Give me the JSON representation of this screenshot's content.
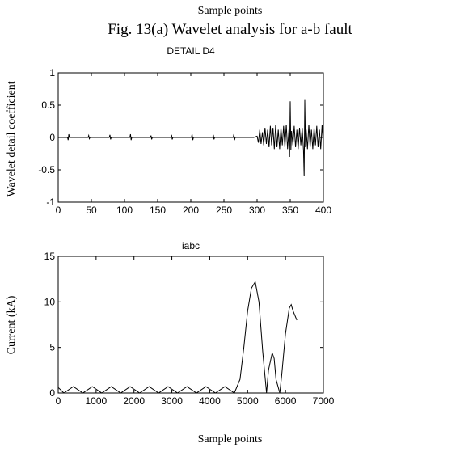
{
  "header": {
    "top_caption": "Sample points",
    "figure_title": "Fig. 13(a) Wavelet analysis for a-b fault"
  },
  "footer": {
    "bottom_caption": "Sample points"
  },
  "chart_data": [
    {
      "type": "line",
      "title": "DETAIL  D4",
      "xlabel": "",
      "ylabel": "Wavelet detail coefficient",
      "xlim": [
        0,
        400
      ],
      "ylim": [
        -1,
        1
      ],
      "xticks": [
        0,
        50,
        100,
        150,
        200,
        250,
        300,
        350,
        400
      ],
      "yticks": [
        -1,
        -0.5,
        0,
        0.5,
        1
      ],
      "xtick_labels": [
        "0",
        "50",
        "100",
        "150",
        "200",
        "250",
        "300",
        "350",
        "400"
      ],
      "ytick_labels": [
        "-1",
        "-0.5",
        "0",
        "0.5",
        "1"
      ],
      "grid": false,
      "series": [
        {
          "x": [
            0,
            14,
            15,
            16,
            17,
            18,
            45,
            46,
            47,
            48,
            77,
            78,
            79,
            80,
            108,
            109,
            110,
            111,
            139,
            140,
            141,
            142,
            170,
            171,
            172,
            173,
            201,
            202,
            203,
            204,
            233,
            234,
            235,
            236,
            264,
            265,
            266,
            267,
            295,
            300,
            302,
            304,
            306,
            308,
            310,
            312,
            314,
            316,
            318,
            320,
            322,
            324,
            326,
            328,
            330,
            332,
            334,
            336,
            338,
            340,
            342,
            344,
            346,
            348,
            349,
            350,
            351,
            352,
            354,
            356,
            358,
            360,
            362,
            364,
            366,
            368,
            370,
            371,
            372,
            373,
            374,
            376,
            378,
            380,
            382,
            384,
            386,
            388,
            390,
            392,
            394,
            396,
            398,
            400
          ],
          "y": [
            0,
            0,
            -0.04,
            0.05,
            0,
            0,
            0,
            0.03,
            -0.02,
            0,
            0,
            0.04,
            -0.03,
            0,
            0,
            0.05,
            -0.04,
            0,
            0,
            0.03,
            -0.03,
            0,
            0,
            0.04,
            -0.03,
            0,
            0,
            0.05,
            -0.04,
            0,
            0,
            0.04,
            -0.03,
            0,
            0,
            0.05,
            -0.04,
            0,
            0,
            0.02,
            -0.08,
            0.12,
            -0.1,
            0.08,
            -0.12,
            0.15,
            -0.1,
            0.12,
            -0.15,
            0.18,
            -0.12,
            0.15,
            -0.18,
            0.2,
            -0.15,
            0.12,
            -0.18,
            0.15,
            -0.12,
            0.18,
            -0.15,
            0.2,
            -0.18,
            0.12,
            -0.3,
            0.56,
            -0.2,
            0.1,
            -0.12,
            0.18,
            -0.15,
            0.12,
            -0.18,
            0.15,
            -0.12,
            0.15,
            -0.2,
            -0.6,
            0.58,
            -0.15,
            0.12,
            -0.18,
            0.2,
            -0.15,
            0.12,
            -0.18,
            0.15,
            -0.12,
            0.18,
            -0.15,
            0.12,
            -0.18,
            0.2,
            -0.15
          ]
        }
      ]
    },
    {
      "type": "line",
      "title": "iabc",
      "xlabel": "",
      "ylabel": "Current (kA)",
      "xlim": [
        0,
        7000
      ],
      "ylim": [
        0,
        15
      ],
      "xticks": [
        0,
        1000,
        2000,
        3000,
        4000,
        5000,
        6000,
        7000
      ],
      "yticks": [
        0,
        5,
        10,
        15
      ],
      "xtick_labels": [
        "0",
        "1000",
        "2000",
        "3000",
        "4000",
        "5000",
        "6000",
        "7000"
      ],
      "ytick_labels": [
        "0",
        "5",
        "10",
        "15"
      ],
      "grid": false,
      "series": [
        {
          "x": [
            0,
            150,
            400,
            650,
            900,
            1150,
            1400,
            1650,
            1900,
            2150,
            2400,
            2650,
            2900,
            3150,
            3400,
            3650,
            3900,
            4150,
            4400,
            4650,
            4800,
            4900,
            5000,
            5100,
            5200,
            5300,
            5400,
            5500,
            5550,
            5650,
            5700,
            5750,
            5850,
            5900,
            6000,
            6100,
            6150,
            6200,
            6300
          ],
          "y": [
            0.6,
            0,
            0.7,
            0,
            0.7,
            0,
            0.7,
            0,
            0.7,
            0,
            0.7,
            0,
            0.7,
            0,
            0.7,
            0,
            0.7,
            0,
            0.7,
            0,
            1.5,
            5,
            9,
            11.5,
            12.2,
            10,
            4.5,
            0,
            2.5,
            4.4,
            3.8,
            1.5,
            0,
            2,
            6.5,
            9.3,
            9.7,
            9,
            8
          ]
        }
      ]
    }
  ]
}
